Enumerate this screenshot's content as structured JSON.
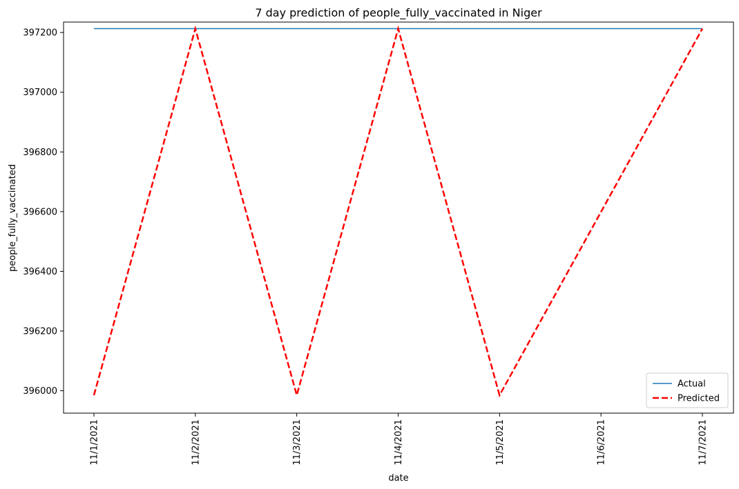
{
  "chart_data": {
    "type": "line",
    "title": "7 day prediction of people_fully_vaccinated in Niger",
    "xlabel": "date",
    "ylabel": "people_fully_vaccinated",
    "categories": [
      "11/1/2021",
      "11/2/2021",
      "11/3/2021",
      "11/4/2021",
      "11/5/2021",
      "11/6/2021",
      "11/7/2021"
    ],
    "ylim": [
      395925,
      397235
    ],
    "yticks": [
      396000,
      396200,
      396400,
      396600,
      396800,
      397000,
      397200
    ],
    "grid": false,
    "legend_position": "bottom-right",
    "series": [
      {
        "name": "Actual",
        "style": "solid",
        "color": "#1f77b4",
        "values": [
          397213,
          397213,
          397213,
          397213,
          397213,
          397213,
          397213
        ]
      },
      {
        "name": "Predicted",
        "style": "dashed",
        "color": "#ff0000",
        "values": [
          395985,
          397213,
          395985,
          397213,
          395985,
          396599,
          397213
        ]
      }
    ]
  }
}
